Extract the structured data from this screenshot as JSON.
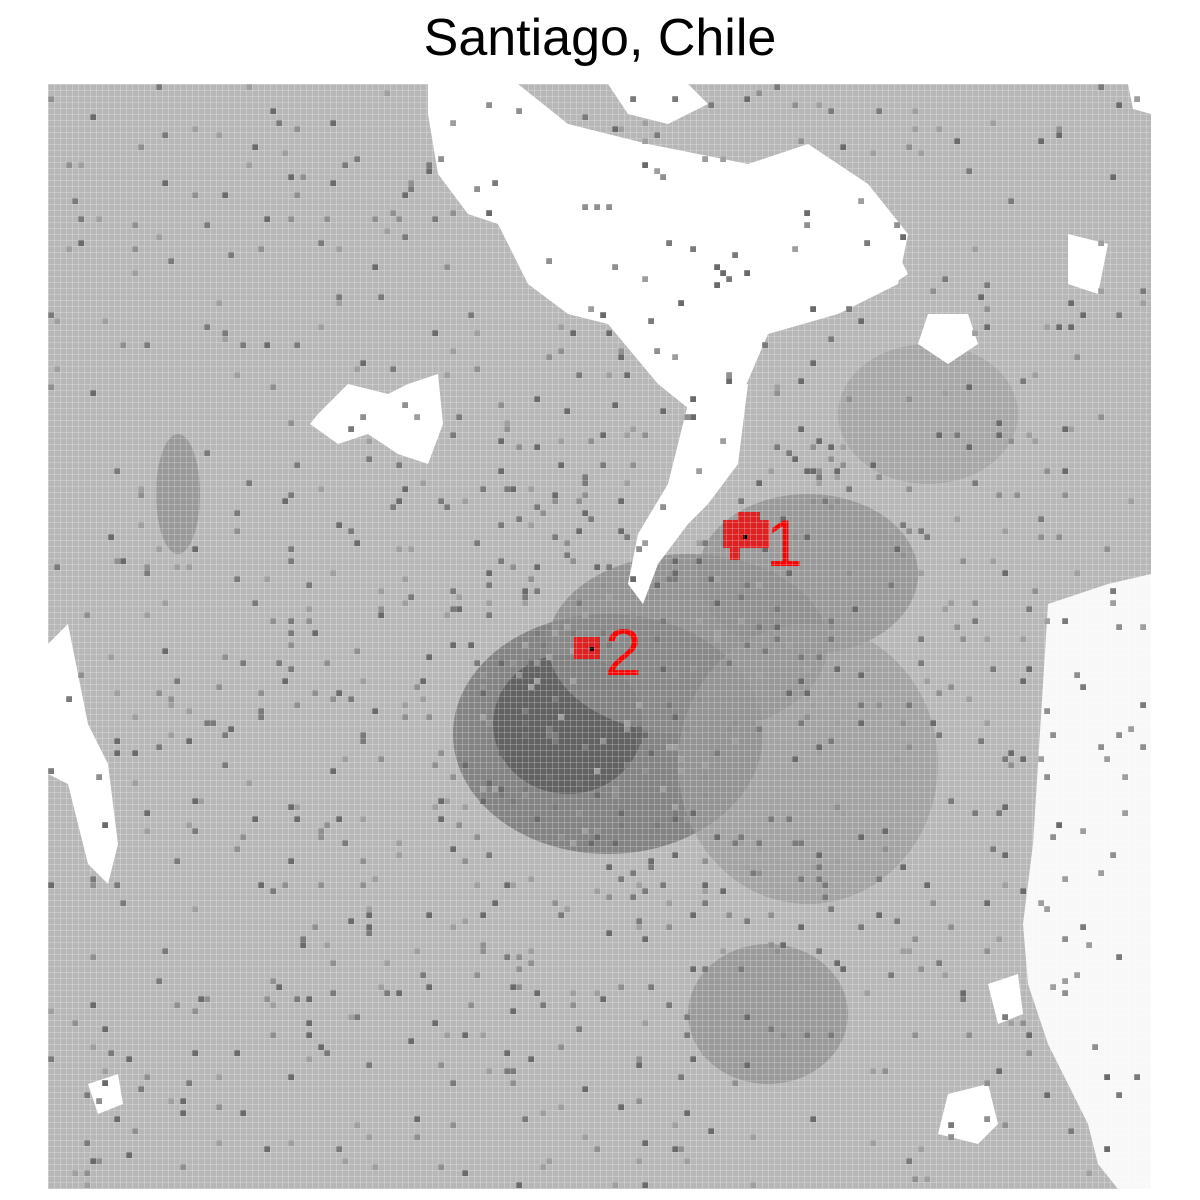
{
  "title": "Santiago, Chile",
  "colors": {
    "base": "#b7b7b7",
    "medium": "#8f8f8f",
    "dark": "#6e6e6e",
    "darker": "#5a5a5a",
    "empty": "#ffffff",
    "highlight": "#e02020"
  },
  "markers": [
    {
      "label": "1"
    },
    {
      "label": "2"
    }
  ]
}
